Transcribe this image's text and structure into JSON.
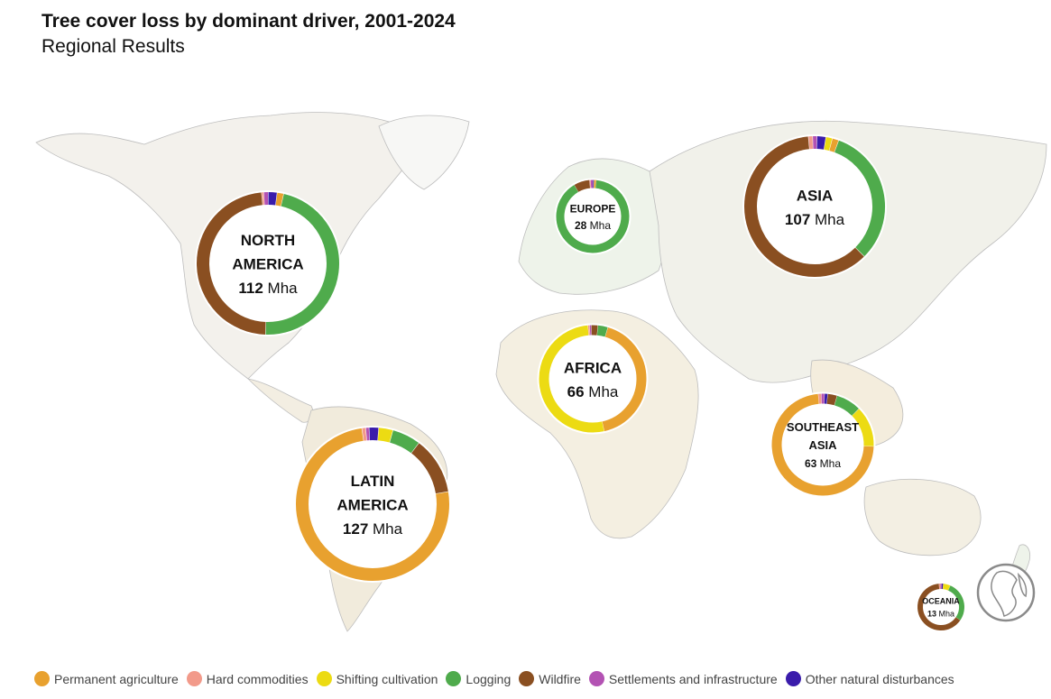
{
  "title": "Tree cover loss by dominant driver, 2001-2024",
  "subtitle": "Regional Results",
  "colors": {
    "Permanent agriculture": "#e8a12f",
    "Hard commodities": "#f29a8a",
    "Shifting cultivation": "#ecdb13",
    "Logging": "#4fab4c",
    "Wildfire": "#8a4f21",
    "Settlements and infrastructure": "#b352b3",
    "Other natural disturbances": "#3a1cab"
  },
  "legend": [
    {
      "label": "Permanent agriculture",
      "color": "#e8a12f"
    },
    {
      "label": "Hard commodities",
      "color": "#f29a8a"
    },
    {
      "label": "Shifting cultivation",
      "color": "#ecdb13"
    },
    {
      "label": "Logging",
      "color": "#4fab4c"
    },
    {
      "label": "Wildfire",
      "color": "#8a4f21"
    },
    {
      "label": "Settlements and infrastructure",
      "color": "#b352b3"
    },
    {
      "label": "Other natural disturbances",
      "color": "#3a1cab"
    }
  ],
  "chart_data": {
    "type": "pie",
    "charts": [
      {
        "region": "NORTH AMERICA",
        "lines": [
          "NORTH",
          "AMERICA"
        ],
        "total": 112,
        "unit": "Mha",
        "shares": {
          "Permanent agriculture": 1.5,
          "Hard commodities": 0.5,
          "Shifting cultivation": 0,
          "Logging": 47,
          "Wildfire": 48,
          "Settlements and infrastructure": 1,
          "Other natural disturbances": 2
        }
      },
      {
        "region": "LATIN AMERICA",
        "lines": [
          "LATIN",
          "AMERICA"
        ],
        "total": 127,
        "unit": "Mha",
        "shares": {
          "Permanent agriculture": 75,
          "Hard commodities": 0.8,
          "Shifting cultivation": 3,
          "Logging": 6,
          "Wildfire": 12,
          "Settlements and infrastructure": 0.7,
          "Other natural disturbances": 2
        }
      },
      {
        "region": "EUROPE",
        "lines": [
          "EUROPE"
        ],
        "total": 28,
        "unit": "Mha",
        "shares": {
          "Permanent agriculture": 1,
          "Hard commodities": 0.5,
          "Shifting cultivation": 0,
          "Logging": 90,
          "Wildfire": 7,
          "Settlements and infrastructure": 1,
          "Other natural disturbances": 0.5
        }
      },
      {
        "region": "AFRICA",
        "lines": [
          "AFRICA"
        ],
        "total": 66,
        "unit": "Mha",
        "shares": {
          "Permanent agriculture": 42,
          "Hard commodities": 0.5,
          "Shifting cultivation": 52,
          "Logging": 3,
          "Wildfire": 2,
          "Settlements and infrastructure": 0.5,
          "Other natural disturbances": 0
        }
      },
      {
        "region": "ASIA",
        "lines": [
          "ASIA"
        ],
        "total": 107,
        "unit": "Mha",
        "shares": {
          "Permanent agriculture": 1.5,
          "Hard commodities": 1,
          "Shifting cultivation": 1.5,
          "Logging": 32,
          "Wildfire": 61,
          "Settlements and infrastructure": 1,
          "Other natural disturbances": 2
        }
      },
      {
        "region": "SOUTHEAST ASIA",
        "lines": [
          "SOUTHEAST",
          "ASIA"
        ],
        "total": 63,
        "unit": "Mha",
        "shares": {
          "Permanent agriculture": 73,
          "Hard commodities": 1,
          "Shifting cultivation": 13,
          "Logging": 8,
          "Wildfire": 3,
          "Settlements and infrastructure": 1,
          "Other natural disturbances": 1
        }
      },
      {
        "region": "OCEANIA",
        "lines": [
          "OCEANIA"
        ],
        "total": 13,
        "unit": "Mha",
        "shares": {
          "Permanent agriculture": 0,
          "Hard commodities": 1,
          "Shifting cultivation": 5,
          "Logging": 28,
          "Wildfire": 64,
          "Settlements and infrastructure": 1,
          "Other natural disturbances": 1
        }
      }
    ]
  }
}
